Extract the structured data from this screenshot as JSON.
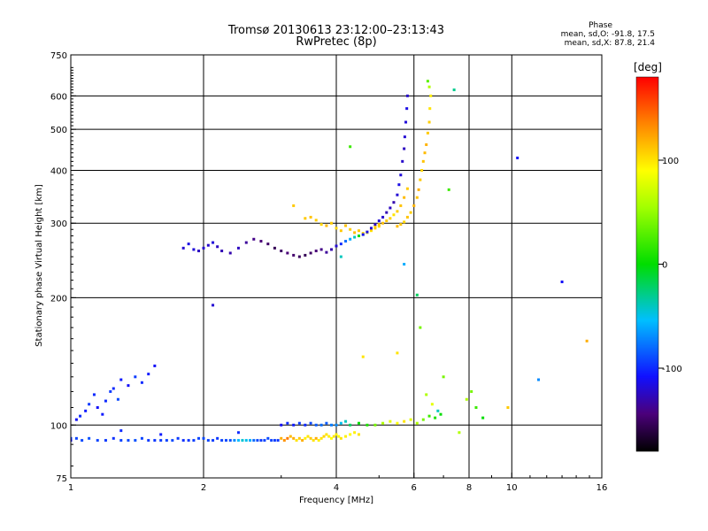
{
  "header": {
    "title_line1": "Tromsø 20130613 23:12:00–23:13:43",
    "title_line2": "RwPretec (8p)",
    "phase_title": "Phase",
    "phase_o": "mean, sd,O: -91.8, 17.5",
    "phase_x": "mean, sd,X: 87.8, 21.4"
  },
  "colorbar": {
    "unit": "[deg]",
    "ticks": [
      {
        "value": 100,
        "label": "100"
      },
      {
        "value": 0,
        "label": "0"
      },
      {
        "value": -100,
        "label": "-100"
      }
    ],
    "range": [
      -180,
      180
    ]
  },
  "chart_data": {
    "type": "scatter",
    "title": "Tromsø 20130613 23:12:00–23:13:43",
    "subtitle": "RwPretec (8p)",
    "xlabel": "Frequency [MHz]",
    "ylabel": "Stationary phase Virtual Height [km]",
    "x_scale": "log",
    "y_scale": "log",
    "xlim": [
      1,
      16
    ],
    "ylim": [
      75,
      750
    ],
    "grid": true,
    "x_ticks": [
      {
        "value": 1,
        "label": "1"
      },
      {
        "value": 2,
        "label": "2"
      },
      {
        "value": 4,
        "label": "4"
      },
      {
        "value": 6,
        "label": "6"
      },
      {
        "value": 8,
        "label": "8"
      },
      {
        "value": 10,
        "label": "10"
      },
      {
        "value": 16,
        "label": "16"
      }
    ],
    "x_grid": [
      2,
      4,
      6,
      8,
      10
    ],
    "y_ticks": [
      {
        "value": 75,
        "label": "75"
      },
      {
        "value": 100,
        "label": "100"
      },
      {
        "value": 200,
        "label": "200"
      },
      {
        "value": 300,
        "label": "300"
      },
      {
        "value": 400,
        "label": "400"
      },
      {
        "value": 500,
        "label": "500"
      },
      {
        "value": 600,
        "label": "600"
      },
      {
        "value": 750,
        "label": "750"
      }
    ],
    "y_grid": [
      100,
      200,
      300,
      400,
      500,
      600
    ],
    "series": [
      {
        "x": [
          1.0,
          1.03,
          1.06,
          1.1,
          1.15,
          1.2,
          1.25,
          1.3,
          1.35,
          1.4,
          1.45,
          1.5,
          1.55,
          1.6,
          1.65,
          1.7,
          1.75,
          1.8,
          1.85,
          1.9,
          1.95,
          2.0,
          2.05,
          2.1,
          2.15,
          2.2,
          2.25,
          2.3,
          2.35,
          2.4,
          2.45,
          2.5,
          2.55,
          2.6,
          2.65,
          2.7,
          2.75,
          2.8,
          2.85,
          2.9,
          2.95
        ],
        "y": [
          93,
          93,
          92,
          93,
          92,
          92,
          93,
          92,
          92,
          92,
          93,
          92,
          92,
          92,
          92,
          92,
          93,
          92,
          92,
          92,
          93,
          93,
          92,
          92,
          93,
          92,
          92,
          92,
          92,
          92,
          92,
          92,
          92,
          92,
          92,
          92,
          92,
          93,
          92,
          92,
          92
        ],
        "phase": [
          -95,
          -92,
          -90,
          -88,
          -92,
          -95,
          -98,
          -92,
          -90,
          -88,
          -92,
          -95,
          -96,
          -94,
          -92,
          -90,
          -95,
          -98,
          -96,
          -94,
          -92,
          -90,
          -92,
          -94,
          -96,
          -92,
          -90,
          -88,
          -70,
          -55,
          -45,
          -50,
          -60,
          -80,
          -90,
          -95,
          -92,
          -90,
          -92,
          -94,
          -96
        ]
      },
      {
        "x": [
          3.0,
          3.05,
          3.1,
          3.15,
          3.2,
          3.25,
          3.3,
          3.35,
          3.4,
          3.45,
          3.5,
          3.55,
          3.6,
          3.65,
          3.7,
          3.75,
          3.8,
          3.85,
          3.9,
          3.95,
          4.0,
          4.05,
          4.1,
          4.2,
          4.3,
          4.4,
          4.5
        ],
        "y": [
          93,
          92,
          93,
          94,
          93,
          92,
          93,
          92,
          93,
          94,
          93,
          92,
          93,
          92,
          93,
          94,
          95,
          94,
          93,
          94,
          95,
          94,
          93,
          94,
          95,
          96,
          95
        ],
        "phase": [
          120,
          130,
          140,
          115,
          120,
          100,
          110,
          120,
          95,
          100,
          110,
          100,
          120,
          95,
          100,
          105,
          100,
          95,
          90,
          100,
          95,
          90,
          100,
          95,
          90,
          95,
          100
        ]
      },
      {
        "x": [
          3.0,
          3.1,
          3.2,
          3.3,
          3.4,
          3.5,
          3.6,
          3.7,
          3.8,
          3.9,
          4.0,
          4.1,
          4.2,
          4.3,
          4.5,
          4.7,
          4.9,
          5.1,
          5.3,
          5.5,
          5.7,
          5.9,
          6.1,
          6.3,
          6.5,
          6.7,
          6.9
        ],
        "y": [
          100,
          101,
          100,
          101,
          100,
          101,
          100,
          100,
          101,
          100,
          100,
          101,
          102,
          100,
          101,
          100,
          100,
          101,
          102,
          101,
          102,
          103,
          101,
          103,
          105,
          104,
          106
        ],
        "phase": [
          -110,
          -100,
          -105,
          -95,
          -100,
          -90,
          -85,
          -80,
          -85,
          -75,
          -70,
          -50,
          -40,
          -20,
          0,
          10,
          40,
          60,
          80,
          90,
          100,
          80,
          60,
          40,
          20,
          10,
          0
        ]
      },
      {
        "x": [
          1.03,
          1.05,
          1.08,
          1.1,
          1.13,
          1.15,
          1.18,
          1.2,
          1.23,
          1.25,
          1.28,
          1.3,
          1.35,
          1.4,
          1.45,
          1.5,
          1.55
        ],
        "y": [
          103,
          105,
          108,
          112,
          118,
          110,
          106,
          114,
          120,
          122,
          115,
          128,
          124,
          130,
          126,
          132,
          138
        ],
        "phase": [
          -110,
          -100,
          -105,
          -95,
          -100,
          -110,
          -105,
          -100,
          -95,
          -100,
          -90,
          -105,
          -110,
          -95,
          -100,
          -105,
          -110
        ]
      },
      {
        "x": [
          1.8,
          1.85,
          1.9,
          1.95,
          2.0,
          2.05,
          2.1,
          2.15,
          2.2,
          2.3,
          2.4,
          2.5,
          2.6,
          2.7,
          2.8,
          2.9,
          3.0,
          3.1,
          3.2,
          3.3,
          3.4,
          3.5,
          3.6,
          3.7,
          3.8,
          3.9,
          4.0,
          4.1,
          4.2,
          4.3,
          4.4,
          4.5,
          4.6,
          4.7,
          4.8,
          4.9,
          5.0
        ],
        "y": [
          262,
          268,
          260,
          258,
          262,
          266,
          270,
          264,
          258,
          255,
          262,
          270,
          275,
          272,
          268,
          262,
          258,
          255,
          252,
          250,
          252,
          255,
          258,
          260,
          256,
          260,
          265,
          268,
          272,
          275,
          278,
          280,
          282,
          285,
          288,
          292,
          295
        ],
        "phase": [
          -120,
          -115,
          -118,
          -125,
          -120,
          -122,
          -118,
          -125,
          -128,
          -130,
          -125,
          -135,
          -140,
          -145,
          -150,
          -155,
          -150,
          -145,
          -148,
          -152,
          -155,
          -150,
          -145,
          -140,
          -135,
          -130,
          -120,
          -100,
          -80,
          -60,
          -40,
          0,
          60,
          90,
          100,
          110,
          105
        ]
      },
      {
        "x": [
          3.4,
          3.5,
          3.6,
          3.7,
          3.8,
          3.9,
          4.0,
          4.1,
          4.2,
          4.3,
          4.4,
          4.5,
          4.6,
          4.7,
          4.8,
          4.9,
          5.0,
          5.1,
          5.2,
          5.3,
          5.4,
          5.5,
          5.6,
          5.7,
          5.8
        ],
        "y": [
          308,
          310,
          305,
          298,
          296,
          300,
          292,
          288,
          296,
          290,
          285,
          288,
          284,
          286,
          290,
          295,
          298,
          300,
          304,
          308,
          314,
          320,
          330,
          345,
          362
        ],
        "phase": [
          110,
          112,
          108,
          105,
          115,
          110,
          105,
          110,
          112,
          108,
          115,
          110,
          105,
          100,
          110,
          108,
          112,
          115,
          110,
          105,
          100,
          108,
          112,
          115,
          110
        ]
      },
      {
        "x": [
          4.6,
          4.7,
          4.8,
          4.9,
          5.0,
          5.1,
          5.2,
          5.3,
          5.4,
          5.5,
          5.55,
          5.6,
          5.65,
          5.7,
          5.72,
          5.75,
          5.78,
          5.8
        ],
        "y": [
          282,
          286,
          292,
          298,
          304,
          310,
          318,
          326,
          336,
          350,
          370,
          390,
          420,
          450,
          480,
          520,
          560,
          600
        ],
        "phase": [
          -110,
          -115,
          -120,
          -125,
          -118,
          -122,
          -128,
          -125,
          -130,
          -120,
          -115,
          -118,
          -122,
          -125,
          -120,
          -118,
          -115,
          -122
        ]
      },
      {
        "x": [
          5.5,
          5.6,
          5.7,
          5.8,
          5.9,
          6.0,
          6.1,
          6.15,
          6.2,
          6.25,
          6.3,
          6.35,
          6.4,
          6.45,
          6.5,
          6.52,
          6.55,
          6.5,
          6.45
        ],
        "y": [
          295,
          298,
          302,
          310,
          318,
          330,
          345,
          360,
          380,
          400,
          420,
          440,
          460,
          490,
          520,
          560,
          600,
          630,
          650
        ],
        "phase": [
          115,
          110,
          105,
          112,
          108,
          118,
          112,
          120,
          110,
          105,
          112,
          115,
          118,
          110,
          108,
          100,
          95,
          60,
          30
        ]
      },
      {
        "x": [
          1.0,
          1.3,
          1.6,
          2.1,
          2.4,
          3.2,
          4.1,
          4.3,
          4.6,
          5.5,
          5.7,
          6.1,
          6.2,
          6.4,
          6.6,
          6.8,
          7.0,
          7.2,
          7.4,
          7.6,
          7.9,
          8.1,
          8.3,
          8.6,
          9.8,
          10.3,
          11.5,
          13.0,
          14.8
        ],
        "y": [
          92,
          97,
          95,
          192,
          96,
          330,
          250,
          455,
          145,
          148,
          240,
          203,
          170,
          118,
          112,
          108,
          130,
          360,
          620,
          96,
          115,
          120,
          110,
          104,
          110,
          428,
          128,
          218,
          158
        ],
        "phase": [
          -110,
          -100,
          -105,
          -120,
          -100,
          110,
          -40,
          20,
          100,
          100,
          -60,
          -20,
          40,
          60,
          80,
          -40,
          40,
          20,
          -30,
          60,
          60,
          40,
          20,
          0,
          110,
          -110,
          -70,
          -110,
          120
        ]
      }
    ]
  }
}
